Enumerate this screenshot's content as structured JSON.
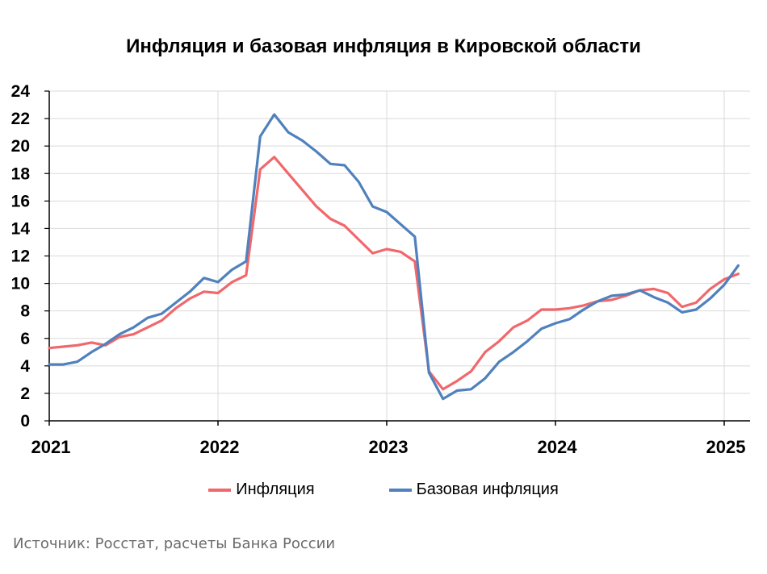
{
  "chart_data": {
    "type": "line",
    "title": "Инфляция и базовая инфляция в Кировской области",
    "xlabel": "",
    "ylabel": "",
    "ylim": [
      0,
      24
    ],
    "yticks": [
      0,
      2,
      4,
      6,
      8,
      10,
      12,
      14,
      16,
      18,
      20,
      22,
      24
    ],
    "xticks": [
      "2021",
      "2022",
      "2023",
      "2024",
      "2025"
    ],
    "xlim": [
      "2021-01",
      "2025-02"
    ],
    "grid": true,
    "legend_position": "bottom",
    "x": [
      "2021-01",
      "2021-02",
      "2021-03",
      "2021-04",
      "2021-05",
      "2021-06",
      "2021-07",
      "2021-08",
      "2021-09",
      "2021-10",
      "2021-11",
      "2021-12",
      "2022-01",
      "2022-02",
      "2022-03",
      "2022-04",
      "2022-05",
      "2022-06",
      "2022-07",
      "2022-08",
      "2022-09",
      "2022-10",
      "2022-11",
      "2022-12",
      "2023-01",
      "2023-02",
      "2023-03",
      "2023-04",
      "2023-05",
      "2023-06",
      "2023-07",
      "2023-08",
      "2023-09",
      "2023-10",
      "2023-11",
      "2023-12",
      "2024-01",
      "2024-02",
      "2024-03",
      "2024-04",
      "2024-05",
      "2024-06",
      "2024-07",
      "2024-08",
      "2024-09",
      "2024-10",
      "2024-11",
      "2024-12",
      "2025-01",
      "2025-02"
    ],
    "series": [
      {
        "name": "Инфляция",
        "color": "#f0686b",
        "values": [
          5.3,
          5.4,
          5.5,
          5.7,
          5.5,
          6.1,
          6.3,
          6.8,
          7.3,
          8.2,
          8.9,
          9.4,
          9.3,
          10.1,
          10.6,
          18.3,
          19.2,
          18.0,
          16.8,
          15.6,
          14.7,
          14.2,
          13.2,
          12.2,
          12.5,
          12.3,
          11.6,
          3.6,
          2.3,
          2.9,
          3.6,
          5.0,
          5.8,
          6.8,
          7.3,
          8.1,
          8.1,
          8.2,
          8.4,
          8.7,
          8.8,
          9.1,
          9.5,
          9.6,
          9.3,
          8.3,
          8.6,
          9.6,
          10.3,
          10.7
        ]
      },
      {
        "name": "Базовая инфляция",
        "color": "#4f81bd",
        "values": [
          4.1,
          4.1,
          4.3,
          5.0,
          5.6,
          6.3,
          6.8,
          7.5,
          7.8,
          8.6,
          9.4,
          10.4,
          10.1,
          11.0,
          11.6,
          20.7,
          22.3,
          21.0,
          20.4,
          19.6,
          18.7,
          18.6,
          17.4,
          15.6,
          15.2,
          14.3,
          13.4,
          3.5,
          1.6,
          2.2,
          2.3,
          3.1,
          4.3,
          5.0,
          5.8,
          6.7,
          7.1,
          7.4,
          8.1,
          8.7,
          9.1,
          9.2,
          9.5,
          9.0,
          8.6,
          7.9,
          8.1,
          8.9,
          9.9,
          11.3
        ]
      }
    ]
  },
  "source_text": "Источник: Росстат, расчеты Банка России"
}
